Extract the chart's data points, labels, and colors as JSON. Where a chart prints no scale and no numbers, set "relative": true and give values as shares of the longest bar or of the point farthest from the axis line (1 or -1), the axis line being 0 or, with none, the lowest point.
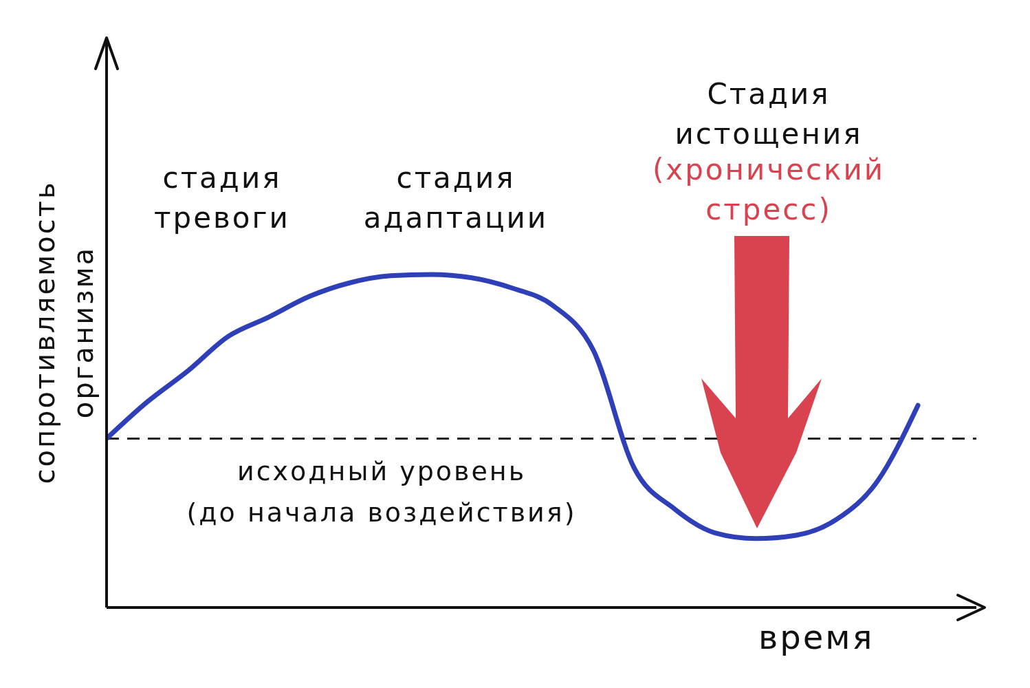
{
  "chart_data": {
    "type": "line",
    "relative": true,
    "xlabel": "время",
    "ylabel": "сопротивляемость организма",
    "categories": [
      null,
      null,
      null,
      null,
      null,
      null,
      null,
      null,
      null,
      null,
      null,
      null,
      null,
      null,
      null,
      null,
      null,
      null,
      null,
      null,
      null
    ],
    "series": [
      {
        "color": "#2f3fb8",
        "values": [
          0.507,
          0.617,
          0.71,
          0.814,
          0.872,
          0.934,
          0.975,
          0.996,
          1,
          0.99,
          0.959,
          0.907,
          0.772,
          0.42,
          0.296,
          0.224,
          0.207,
          0.217,
          0.265,
          0.379,
          0.607
        ]
      }
    ],
    "marker": "none",
    "line_style": "solid",
    "ref_lines": [
      {
        "axis": "y",
        "value": 0.507,
        "label": "исходный уровень (до начала воздействия)",
        "color": "#222222",
        "line_style": "dashed"
      }
    ],
    "annotations": [
      "стадия тревоги",
      "стадия адаптации",
      "Стадия истощения",
      "(хронический стресс)"
    ]
  }
}
